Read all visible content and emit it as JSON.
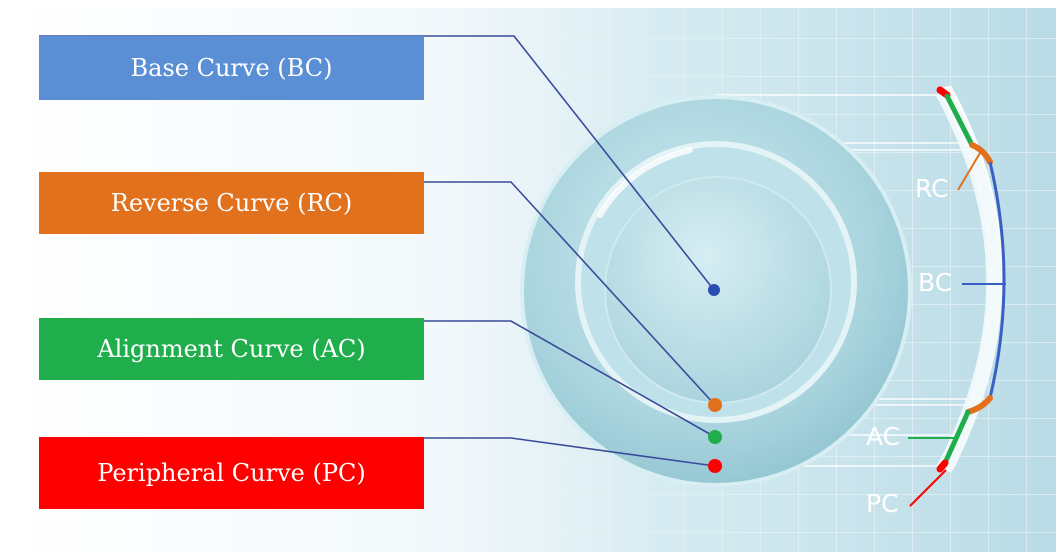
{
  "colors": {
    "base_curve": "#5a8fd6",
    "reverse_curve": "#e2711d",
    "alignment_curve": "#1fae4b",
    "peripheral_curve": "#ff0000",
    "connector_line": "#3a4a9a",
    "lens_fill": "#a9d6df",
    "side_bc_line": "#3a5fc4"
  },
  "labels": {
    "base_curve": "Base Curve (BC)",
    "reverse_curve": "Reverse Curve (RC)",
    "alignment_curve": "Alignment Curve (AC)",
    "peripheral_curve": "Peripheral Curve (PC)"
  },
  "side_labels": {
    "rc": "RC",
    "bc": "BC",
    "ac": "AC",
    "pc": "PC"
  }
}
